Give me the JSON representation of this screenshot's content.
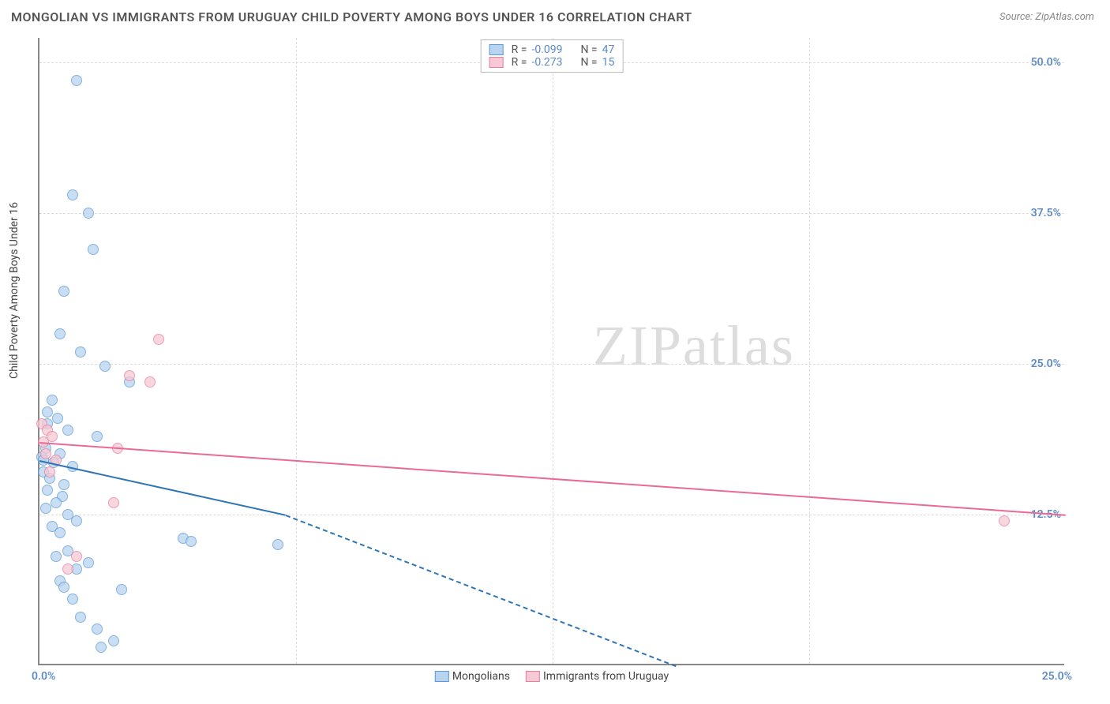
{
  "title": "MONGOLIAN VS IMMIGRANTS FROM URUGUAY CHILD POVERTY AMONG BOYS UNDER 16 CORRELATION CHART",
  "source": "Source: ZipAtlas.com",
  "ylabel": "Child Poverty Among Boys Under 16",
  "watermark": "ZIPatlas",
  "colors": {
    "series1_fill": "#b8d4f0",
    "series1_stroke": "#5b9bd5",
    "series1_line": "#2e75b6",
    "series2_fill": "#f6c9d4",
    "series2_stroke": "#e87da0",
    "series2_line": "#e86a98",
    "tick_color": "#5b8ac7",
    "grid_color": "#dddddd",
    "title_color": "#555555",
    "background": "#ffffff"
  },
  "typography": {
    "title_fontsize": 16,
    "label_fontsize": 14,
    "tick_fontsize": 14
  },
  "chart": {
    "type": "scatter",
    "xlim": [
      0,
      25
    ],
    "ylim": [
      0,
      52
    ],
    "y_ticks": [
      12.5,
      25.0,
      37.5,
      50.0
    ],
    "y_tick_labels": [
      "12.5%",
      "25.0%",
      "37.5%",
      "50.0%"
    ],
    "x_origin_label": "0.0%",
    "x_max_label": "25.0%",
    "x_vgrid": [
      6.25,
      12.5,
      18.75
    ],
    "marker_size": 14,
    "marker_opacity": 0.75
  },
  "legend_top": {
    "rows": [
      {
        "swatch_fill": "#b8d4f0",
        "swatch_stroke": "#5b9bd5",
        "r_label": "R =",
        "r_value": "-0.099",
        "n_label": "N =",
        "n_value": "47"
      },
      {
        "swatch_fill": "#f6c9d4",
        "swatch_stroke": "#e87da0",
        "r_label": "R =",
        "r_value": "-0.273",
        "n_label": "N =",
        "n_value": "15"
      }
    ]
  },
  "legend_bottom": {
    "items": [
      {
        "swatch_fill": "#b8d4f0",
        "swatch_stroke": "#5b9bd5",
        "label": "Mongolians"
      },
      {
        "swatch_fill": "#f6c9d4",
        "swatch_stroke": "#e87da0",
        "label": "Immigrants from Uruguay"
      }
    ]
  },
  "series": [
    {
      "name": "Mongolians",
      "fill": "#b8d4f0",
      "stroke": "#5b9bd5",
      "points": [
        [
          0.9,
          48.5
        ],
        [
          0.8,
          39.0
        ],
        [
          1.2,
          37.5
        ],
        [
          1.3,
          34.5
        ],
        [
          0.6,
          31.0
        ],
        [
          0.5,
          27.5
        ],
        [
          1.0,
          26.0
        ],
        [
          1.6,
          24.8
        ],
        [
          2.2,
          23.5
        ],
        [
          0.3,
          22.0
        ],
        [
          0.2,
          21.0
        ],
        [
          0.45,
          20.5
        ],
        [
          0.2,
          20.0
        ],
        [
          0.7,
          19.5
        ],
        [
          1.4,
          19.0
        ],
        [
          0.15,
          18.0
        ],
        [
          0.5,
          17.5
        ],
        [
          0.05,
          17.3
        ],
        [
          0.1,
          17.0
        ],
        [
          0.35,
          16.8
        ],
        [
          0.8,
          16.5
        ],
        [
          0.1,
          16.0
        ],
        [
          0.25,
          15.5
        ],
        [
          0.6,
          15.0
        ],
        [
          0.2,
          14.5
        ],
        [
          0.55,
          14.0
        ],
        [
          0.4,
          13.5
        ],
        [
          0.15,
          13.0
        ],
        [
          0.7,
          12.5
        ],
        [
          0.9,
          12.0
        ],
        [
          0.3,
          11.5
        ],
        [
          0.5,
          11.0
        ],
        [
          3.5,
          10.5
        ],
        [
          3.7,
          10.3
        ],
        [
          5.8,
          10.0
        ],
        [
          0.7,
          9.5
        ],
        [
          0.4,
          9.0
        ],
        [
          1.2,
          8.5
        ],
        [
          0.9,
          8.0
        ],
        [
          0.5,
          7.0
        ],
        [
          0.6,
          6.5
        ],
        [
          2.0,
          6.3
        ],
        [
          0.8,
          5.5
        ],
        [
          1.0,
          4.0
        ],
        [
          1.4,
          3.0
        ],
        [
          1.8,
          2.0
        ],
        [
          1.5,
          1.5
        ]
      ],
      "trend": {
        "x1": 0,
        "y1": 17.0,
        "x2_solid": 6,
        "y2_solid": 12.5,
        "x2_dash": 15.5,
        "y2_dash": 0,
        "color": "#2e75b6"
      }
    },
    {
      "name": "Immigrants from Uruguay",
      "fill": "#f6c9d4",
      "stroke": "#e87da0",
      "points": [
        [
          2.9,
          27.0
        ],
        [
          2.2,
          24.0
        ],
        [
          2.7,
          23.5
        ],
        [
          0.05,
          20.0
        ],
        [
          0.2,
          19.5
        ],
        [
          0.3,
          19.0
        ],
        [
          0.1,
          18.5
        ],
        [
          1.9,
          18.0
        ],
        [
          0.15,
          17.5
        ],
        [
          0.4,
          17.0
        ],
        [
          0.25,
          16.0
        ],
        [
          1.8,
          13.5
        ],
        [
          23.5,
          12.0
        ],
        [
          0.9,
          9.0
        ],
        [
          0.7,
          8.0
        ]
      ],
      "trend": {
        "x1": 0,
        "y1": 18.5,
        "x2_solid": 25,
        "y2_solid": 12.5,
        "color": "#e86a98"
      }
    }
  ]
}
